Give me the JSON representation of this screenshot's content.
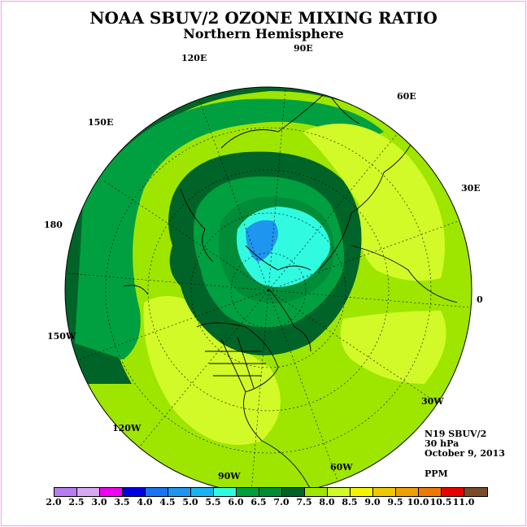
{
  "title": "NOAA SBUV/2 OZONE MIXING RATIO",
  "subtitle": "Northern Hemisphere",
  "longitude_labels": [
    "90E",
    "60E",
    "30E",
    "0",
    "30W",
    "60W",
    "90W",
    "120W",
    "150W",
    "180",
    "150E",
    "120E"
  ],
  "info": {
    "satellite": "N19 SBUV/2",
    "pressure": "30 hPa",
    "date": "October 9, 2013",
    "units": "PPM"
  },
  "legend": {
    "values": [
      "2.0",
      "2.5",
      "3.0",
      "3.5",
      "4.0",
      "4.5",
      "5.0",
      "5.5",
      "6.0",
      "6.5",
      "7.0",
      "7.5",
      "8.0",
      "8.5",
      "9.0",
      "9.5",
      "10.0",
      "10.5",
      "11.0"
    ],
    "colors": [
      "#b87cf0",
      "#d6a8f2",
      "#f000f0",
      "#0000e0",
      "#1874f0",
      "#1e96f0",
      "#18b4f0",
      "#30fae0",
      "#00a040",
      "#008c38",
      "#006428",
      "#9ee600",
      "#d2fa28",
      "#f5f500",
      "#f0c800",
      "#f0a000",
      "#f07800",
      "#e60000",
      "#7c4c28"
    ]
  },
  "map_colors": {
    "ocean": "#9ee600",
    "light": "#d2fa28",
    "band": "#008c38",
    "dark": "#006428",
    "mid": "#00a040",
    "cyan": "#30fae0",
    "blue": "#1e96f0"
  }
}
